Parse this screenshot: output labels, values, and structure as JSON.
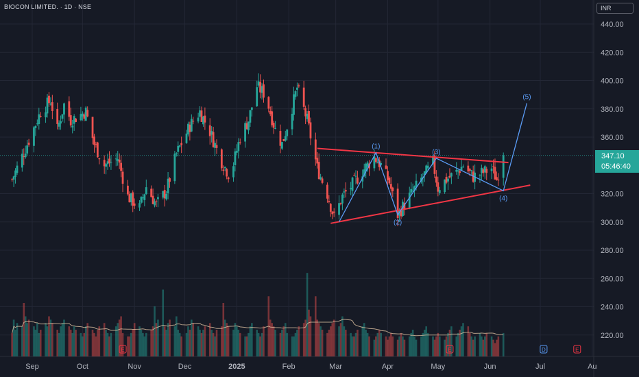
{
  "header": {
    "title": "BIOCON LIMITED. · 1D · NSE",
    "currency": "INR"
  },
  "price_badge": {
    "price": "347.10",
    "countdown": "05:46:40"
  },
  "colors": {
    "bg": "#161a25",
    "up": "#26a69a",
    "down": "#ef5350",
    "pattern": "#f23645",
    "wave": "#5b9cf6",
    "ma": "#e0c3a2"
  },
  "chart_data": {
    "type": "candlestick",
    "symbol": "BIOCON LIMITED.",
    "interval": "1D",
    "exchange": "NSE",
    "ylim": [
      204,
      444
    ],
    "y_ticks": [
      {
        "v": 440,
        "label": "440.00"
      },
      {
        "v": 420,
        "label": "420.00"
      },
      {
        "v": 400,
        "label": "400.00"
      },
      {
        "v": 380,
        "label": "380.00"
      },
      {
        "v": 360,
        "label": "360.00"
      },
      {
        "v": 320,
        "label": "320.00"
      },
      {
        "v": 300,
        "label": "300.00"
      },
      {
        "v": 280,
        "label": "280.00"
      },
      {
        "v": 260,
        "label": "260.00"
      },
      {
        "v": 240,
        "label": "240.00"
      },
      {
        "v": 220,
        "label": "220.00"
      }
    ],
    "x_labels": [
      {
        "label": "Sep",
        "date": "2024-09-01"
      },
      {
        "label": "Oct",
        "date": "2024-10-01"
      },
      {
        "label": "Nov",
        "date": "2024-11-01"
      },
      {
        "label": "Dec",
        "date": "2024-12-01"
      },
      {
        "label": "2025",
        "date": "2025-01-01"
      },
      {
        "label": "Feb",
        "date": "2025-02-01"
      },
      {
        "label": "Mar",
        "date": "2025-03-01"
      },
      {
        "label": "Apr",
        "date": "2025-04-01"
      },
      {
        "label": "May",
        "date": "2025-05-01"
      },
      {
        "label": "Jun",
        "date": "2025-06-01"
      },
      {
        "label": "Jul",
        "date": "2025-07-01"
      },
      {
        "label": "Au",
        "date": "2025-08-01"
      }
    ],
    "last_price": 347.1,
    "close_path": [
      {
        "date": "2024-08-20",
        "c": 330
      },
      {
        "date": "2024-08-28",
        "c": 352
      },
      {
        "date": "2024-09-06",
        "c": 378
      },
      {
        "date": "2024-09-12",
        "c": 386
      },
      {
        "date": "2024-09-16",
        "c": 365
      },
      {
        "date": "2024-09-20",
        "c": 383
      },
      {
        "date": "2024-09-24",
        "c": 372
      },
      {
        "date": "2024-10-03",
        "c": 378
      },
      {
        "date": "2024-10-08",
        "c": 355
      },
      {
        "date": "2024-10-14",
        "c": 340
      },
      {
        "date": "2024-10-22",
        "c": 345
      },
      {
        "date": "2024-10-28",
        "c": 318
      },
      {
        "date": "2024-11-04",
        "c": 310
      },
      {
        "date": "2024-11-08",
        "c": 325
      },
      {
        "date": "2024-11-14",
        "c": 312
      },
      {
        "date": "2024-11-20",
        "c": 322
      },
      {
        "date": "2024-11-26",
        "c": 348
      },
      {
        "date": "2024-12-04",
        "c": 368
      },
      {
        "date": "2024-12-10",
        "c": 378
      },
      {
        "date": "2024-12-16",
        "c": 364
      },
      {
        "date": "2024-12-22",
        "c": 345
      },
      {
        "date": "2024-12-28",
        "c": 332
      },
      {
        "date": "2025-01-03",
        "c": 360
      },
      {
        "date": "2025-01-08",
        "c": 372
      },
      {
        "date": "2025-01-13",
        "c": 396
      },
      {
        "date": "2025-01-18",
        "c": 390
      },
      {
        "date": "2025-01-24",
        "c": 365
      },
      {
        "date": "2025-01-28",
        "c": 355
      },
      {
        "date": "2025-02-01",
        "c": 372
      },
      {
        "date": "2025-02-06",
        "c": 395
      },
      {
        "date": "2025-02-12",
        "c": 372
      },
      {
        "date": "2025-02-18",
        "c": 338
      },
      {
        "date": "2025-02-24",
        "c": 320
      },
      {
        "date": "2025-02-28",
        "c": 303
      },
      {
        "date": "2025-03-05",
        "c": 318
      },
      {
        "date": "2025-03-10",
        "c": 325
      },
      {
        "date": "2025-03-17",
        "c": 336
      },
      {
        "date": "2025-03-24",
        "c": 346
      },
      {
        "date": "2025-03-28",
        "c": 340
      },
      {
        "date": "2025-04-02",
        "c": 328
      },
      {
        "date": "2025-04-07",
        "c": 305
      },
      {
        "date": "2025-04-14",
        "c": 318
      },
      {
        "date": "2025-04-21",
        "c": 330
      },
      {
        "date": "2025-04-28",
        "c": 342
      },
      {
        "date": "2025-05-01",
        "c": 324
      },
      {
        "date": "2025-05-06",
        "c": 330
      },
      {
        "date": "2025-05-12",
        "c": 335
      },
      {
        "date": "2025-05-16",
        "c": 340
      },
      {
        "date": "2025-05-22",
        "c": 332
      },
      {
        "date": "2025-05-28",
        "c": 335
      },
      {
        "date": "2025-06-02",
        "c": 338
      },
      {
        "date": "2025-06-05",
        "c": 330
      },
      {
        "date": "2025-06-09",
        "c": 347.1
      }
    ],
    "pattern_lines": [
      {
        "name": "upper trendline",
        "from": {
          "date": "2025-02-18",
          "p": 352
        },
        "to": {
          "date": "2025-06-12",
          "p": 342
        }
      },
      {
        "name": "lower trendline",
        "from": {
          "date": "2025-02-26",
          "p": 299
        },
        "to": {
          "date": "2025-06-25",
          "p": 326
        }
      }
    ],
    "elliott_wave": [
      {
        "label": "",
        "date": "2025-03-03",
        "p": 300
      },
      {
        "label": "(1)",
        "date": "2025-03-25",
        "p": 349
      },
      {
        "label": "(2)",
        "date": "2025-04-07",
        "p": 305
      },
      {
        "label": "(3)",
        "date": "2025-04-30",
        "p": 345
      },
      {
        "label": "(4)",
        "date": "2025-06-09",
        "p": 322
      },
      {
        "label": "(5)",
        "date": "2025-06-23",
        "p": 384
      }
    ],
    "volume_levels": [
      0.35,
      0.55,
      0.4,
      0.5,
      0.45,
      0.8,
      0.6,
      0.5,
      0.55,
      0.45,
      0.4,
      0.5,
      0.35,
      0.4,
      0.5,
      0.45,
      0.6,
      0.55,
      0.5,
      0.4,
      0.35,
      0.45,
      0.5,
      0.55,
      0.45,
      0.4,
      0.35,
      0.45,
      0.4,
      0.35,
      0.3,
      0.35,
      0.45,
      0.5,
      0.4,
      0.35,
      0.3,
      0.4,
      0.45,
      0.5,
      0.4,
      0.35,
      0.3,
      0.35,
      0.45,
      0.5,
      0.55,
      0.6,
      0.35,
      0.3,
      0.3,
      0.35,
      0.4,
      0.5,
      0.45,
      0.4,
      0.35,
      0.3,
      0.35,
      0.4,
      0.45,
      0.75,
      0.5,
      0.55,
      1.0,
      0.45,
      0.4,
      0.5,
      0.55,
      0.45,
      0.6,
      0.4,
      0.35,
      0.3,
      0.35,
      0.45,
      0.4,
      0.55,
      0.5,
      0.45,
      0.4,
      0.35,
      0.4,
      0.45,
      0.5,
      0.4,
      0.35,
      0.3,
      0.4,
      0.45,
      0.8,
      0.55,
      0.5,
      0.45,
      0.4,
      0.5,
      0.45,
      0.4,
      0.35,
      0.3,
      0.3,
      0.35,
      0.45,
      0.5,
      0.4,
      0.35,
      0.3,
      0.35,
      0.45,
      0.9,
      0.55,
      0.5,
      0.45,
      0.4,
      0.35,
      0.4,
      0.45,
      0.5,
      0.35,
      0.3,
      0.3,
      0.35,
      0.4,
      0.45,
      0.5,
      0.55,
      1.25,
      0.7,
      0.6,
      0.9,
      0.55,
      0.5,
      0.45,
      0.4,
      0.35,
      0.4,
      0.45,
      0.5,
      0.55,
      0.45,
      0.5,
      0.6,
      0.45,
      0.4,
      0.35,
      0.3,
      0.3,
      0.35,
      0.4,
      0.45,
      0.5,
      0.4,
      0.35,
      0.3,
      0.25,
      0.3,
      0.35,
      0.4,
      0.35,
      0.3,
      0.25,
      0.3,
      0.35,
      0.3,
      0.25,
      0.3,
      0.35,
      0.3,
      0.25,
      0.3,
      0.35,
      0.4,
      0.3,
      0.25,
      0.3,
      0.35,
      0.4,
      0.45,
      0.35,
      0.3,
      0.25,
      0.3,
      0.35,
      0.3,
      0.25,
      0.3,
      0.35,
      0.4,
      0.45,
      0.3,
      0.35,
      0.4,
      0.45,
      0.5,
      0.45,
      0.35,
      0.3,
      0.25,
      0.3,
      0.35,
      0.3,
      0.25,
      0.3,
      0.35,
      0.3,
      0.25,
      0.2,
      0.25,
      0.3
    ],
    "markers": [
      {
        "kind": "E",
        "date": "2024-10-25"
      },
      {
        "kind": "E",
        "date": "2025-05-08"
      },
      {
        "kind": "D",
        "date": "2025-07-03"
      },
      {
        "kind": "E",
        "date": "2025-07-23"
      }
    ]
  }
}
